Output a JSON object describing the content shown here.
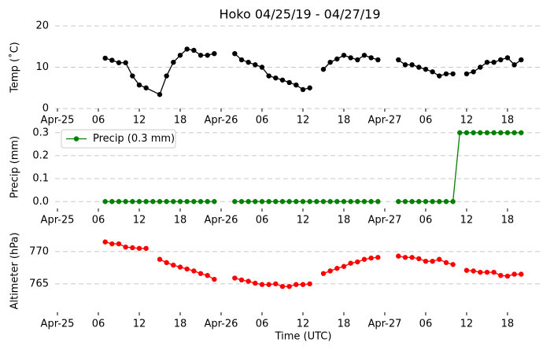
{
  "chart_data": [
    {
      "type": "line",
      "title": "Hoko 04/25/19 - 04/27/19",
      "ylabel": "Temp (˚C)",
      "x": [
        7,
        8,
        9,
        10,
        11,
        12,
        13,
        15,
        16,
        17,
        18,
        19,
        20,
        21,
        22,
        23,
        24,
        25,
        26,
        27,
        28,
        29,
        30,
        31,
        32,
        33,
        34,
        35,
        36,
        37,
        38,
        39,
        40,
        41,
        42,
        43,
        44,
        45,
        46,
        47,
        48,
        49,
        50,
        51,
        52,
        53,
        54,
        55,
        56,
        57,
        58,
        59,
        60,
        61,
        62,
        63,
        64,
        65,
        66,
        67,
        68
      ],
      "series": [
        {
          "color": "#000000",
          "values": [
            12.2,
            11.7,
            11.1,
            11.1,
            7.9,
            5.7,
            5.0,
            3.4,
            7.9,
            11.2,
            12.9,
            14.4,
            14.1,
            12.9,
            12.9,
            13.3,
            null,
            null,
            13.3,
            11.8,
            11.2,
            10.6,
            10.0,
            7.9,
            7.4,
            6.9,
            6.3,
            5.7,
            4.6,
            5.0,
            null,
            9.5,
            11.2,
            12.0,
            12.9,
            12.3,
            11.8,
            12.9,
            12.3,
            11.8,
            null,
            null,
            11.8,
            10.6,
            10.6,
            10.0,
            9.5,
            8.9,
            7.9,
            8.4,
            8.4,
            null,
            8.4,
            8.9,
            10.0,
            11.2,
            11.2,
            11.8,
            12.3,
            10.6,
            11.8
          ]
        }
      ],
      "xlim": [
        0,
        71.2
      ],
      "xticks": [
        {
          "value": 0,
          "label": "Apr-25"
        },
        {
          "value": 6,
          "label": "06"
        },
        12,
        18,
        {
          "value": 24,
          "label": "Apr-26"
        },
        {
          "value": 30,
          "label": "06"
        },
        {
          "value": 36,
          "label": "12"
        },
        {
          "value": 42,
          "label": "18"
        },
        {
          "value": 48,
          "label": "Apr-27"
        },
        {
          "value": 54,
          "label": "06"
        },
        {
          "value": 60,
          "label": "12"
        },
        {
          "value": 66,
          "label": "18"
        }
      ],
      "ylim": [
        0,
        20
      ],
      "yticks": [
        0,
        10,
        20
      ],
      "grid": true
    },
    {
      "type": "line",
      "ylabel": "Precip (mm)",
      "legend": "upper left",
      "x": [
        7,
        8,
        9,
        10,
        11,
        12,
        13,
        14,
        15,
        16,
        17,
        18,
        19,
        20,
        21,
        22,
        23,
        24,
        25,
        26,
        27,
        28,
        29,
        30,
        31,
        32,
        33,
        34,
        35,
        36,
        37,
        38,
        39,
        40,
        41,
        42,
        43,
        44,
        45,
        46,
        47,
        48,
        49,
        50,
        51,
        52,
        53,
        54,
        55,
        56,
        57,
        58,
        59,
        60,
        61,
        62,
        63,
        64,
        65,
        66,
        67,
        68
      ],
      "series": [
        {
          "name": "Precip (0.3 mm)",
          "color": "#008000",
          "values": [
            0,
            0,
            0,
            0,
            0,
            0,
            0,
            0,
            0,
            0,
            0,
            0,
            0,
            0,
            0,
            0,
            0,
            null,
            null,
            0,
            0,
            0,
            0,
            0,
            0,
            0,
            0,
            0,
            0,
            0,
            0,
            0,
            0,
            0,
            0,
            0,
            0,
            0,
            0,
            0,
            0,
            null,
            null,
            0,
            0,
            0,
            0,
            0,
            0,
            0,
            0,
            0,
            0.3,
            0.3,
            0.3,
            0.3,
            0.3,
            0.3,
            0.3,
            0.3,
            0.3,
            0.3
          ]
        }
      ],
      "xlim": [
        0,
        71.2
      ],
      "xticks": [
        {
          "value": 0,
          "label": "Apr-25"
        },
        {
          "value": 6,
          "label": "06"
        },
        12,
        18,
        {
          "value": 24,
          "label": "Apr-26"
        },
        {
          "value": 30,
          "label": "06"
        },
        {
          "value": 36,
          "label": "12"
        },
        {
          "value": 42,
          "label": "18"
        },
        {
          "value": 48,
          "label": "Apr-27"
        },
        {
          "value": 54,
          "label": "06"
        },
        {
          "value": 60,
          "label": "12"
        },
        {
          "value": 66,
          "label": "18"
        }
      ],
      "ylim": [
        -0.03,
        0.33
      ],
      "yticks": [
        {
          "value": 0,
          "label": "0.0"
        },
        0.1,
        0.2,
        0.3
      ],
      "grid": true
    },
    {
      "type": "line",
      "ylabel": "Altimeter (hPa)",
      "xlabel": "Time (UTC)",
      "x": [
        7,
        8,
        9,
        10,
        11,
        12,
        13,
        14,
        15,
        16,
        17,
        18,
        19,
        20,
        21,
        22,
        23,
        24,
        25,
        26,
        27,
        28,
        29,
        30,
        31,
        32,
        33,
        34,
        35,
        36,
        37,
        38,
        39,
        40,
        41,
        42,
        43,
        44,
        45,
        46,
        47,
        48,
        49,
        50,
        51,
        52,
        53,
        54,
        55,
        56,
        57,
        58,
        59,
        60,
        61,
        62,
        63,
        64,
        65,
        66,
        67,
        68
      ],
      "series": [
        {
          "color": "#ff0000",
          "values": [
            771.5,
            771.2,
            771.2,
            770.7,
            770.6,
            770.5,
            770.5,
            null,
            768.8,
            768.3,
            767.9,
            767.6,
            767.3,
            767.0,
            766.6,
            766.3,
            765.7,
            null,
            null,
            765.9,
            765.6,
            765.4,
            765.1,
            764.9,
            764.9,
            765.0,
            764.6,
            764.6,
            764.9,
            764.9,
            765.0,
            null,
            766.6,
            767.0,
            767.4,
            767.7,
            768.2,
            768.4,
            768.8,
            769.0,
            769.1,
            null,
            null,
            769.3,
            769.1,
            769.1,
            768.9,
            768.5,
            768.5,
            768.8,
            768.3,
            768.0,
            null,
            767.1,
            767.0,
            766.8,
            766.8,
            766.8,
            766.3,
            766.2,
            766.5,
            766.5
          ]
        }
      ],
      "xlim": [
        0,
        71.2
      ],
      "xticks": [
        {
          "value": 0,
          "label": "Apr-25"
        },
        {
          "value": 6,
          "label": "06"
        },
        12,
        18,
        {
          "value": 24,
          "label": "Apr-26"
        },
        {
          "value": 30,
          "label": "06"
        },
        {
          "value": 36,
          "label": "12"
        },
        {
          "value": 42,
          "label": "18"
        },
        {
          "value": 48,
          "label": "Apr-27"
        },
        {
          "value": 54,
          "label": "06"
        },
        {
          "value": 60,
          "label": "12"
        },
        {
          "value": 66,
          "label": "18"
        }
      ],
      "ylim": [
        760.6,
        773.4
      ],
      "yticks": [
        765,
        770
      ],
      "grid": true
    }
  ]
}
